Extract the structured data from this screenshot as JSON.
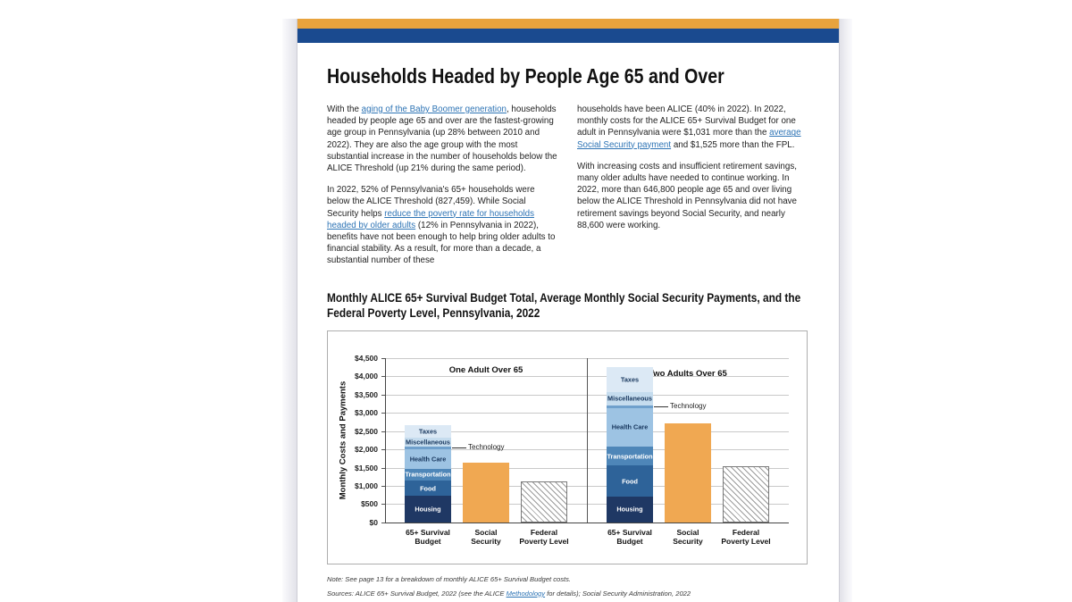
{
  "brand": {
    "band_orange": "#E8A33D",
    "band_blue": "#1A4A8F",
    "link_color": "#2E74B5"
  },
  "title": "Households Headed by People Age 65 and Over",
  "article": {
    "col1": {
      "p1": [
        {
          "t": "With the "
        },
        {
          "t": "aging of the Baby Boomer generation",
          "link": true
        },
        {
          "t": ", households headed by people age 65 and over are the fastest-growing age group in Pennsylvania (up 28% between 2010 and 2022). They are also the age group with the most substantial increase in the number of households below the ALICE Threshold (up 21% during the same period)."
        }
      ],
      "p2": [
        {
          "t": "In 2022, 52% of Pennsylvania's 65+ households were below the ALICE Threshold (827,459). While Social Security helps "
        },
        {
          "t": "reduce the poverty rate for households headed by older adults",
          "link": true
        },
        {
          "t": " (12% in Pennsylvania in 2022), benefits have not been enough to help bring older adults to financial stability. As a result, for more than a decade, a substantial number of these"
        }
      ]
    },
    "col2": {
      "p1": [
        {
          "t": "households have been ALICE (40% in 2022). In 2022, monthly costs for the ALICE 65+ Survival Budget for one adult in Pennsylvania were $1,031 more than the "
        },
        {
          "t": "average Social Security payment",
          "link": true
        },
        {
          "t": " and $1,525 more than the FPL."
        }
      ],
      "p2": [
        {
          "t": "With increasing costs and insufficient retirement savings, many older adults have needed to continue working. In 2022, more than 646,800 people age 65 and over living below the ALICE Threshold in Pennsylvania did not have retirement savings beyond Social Security, and nearly 88,600 were working."
        }
      ]
    }
  },
  "chart_heading": "Monthly ALICE 65+ Survival Budget Total, Average Monthly Social Security Payments, and the Federal Poverty Level, Pennsylvania, 2022",
  "chart_data": {
    "type": "bar",
    "title": "Monthly ALICE 65+ Survival Budget Total, Average Monthly Social Security Payments, and the Federal Poverty Level, Pennsylvania, 2022",
    "ylabel": "Monthly Costs and Payments",
    "ylim": [
      0,
      4500
    ],
    "ytick_step": 500,
    "ytick_labels": [
      "$0",
      "$500",
      "$1,000",
      "$1,500",
      "$2,000",
      "$2,500",
      "$3,000",
      "$3,500",
      "$4,000",
      "$4,500"
    ],
    "grid": true,
    "values_are_estimates_from_pixels": true,
    "segment_colors": {
      "Housing": {
        "fill": "#1F3864",
        "text": "#FFFFFF"
      },
      "Food": {
        "fill": "#2E6399",
        "text": "#FFFFFF"
      },
      "Transportation": {
        "fill": "#4E86B8",
        "text": "#FFFFFF"
      },
      "Health Care": {
        "fill": "#9DC3E3",
        "text": "#17365D"
      },
      "Technology": {
        "fill": "#6FA0CC",
        "text": "#222222"
      },
      "Miscellaneous": {
        "fill": "#C5DCEE",
        "text": "#17365D"
      },
      "Taxes": {
        "fill": "#DCE9F5",
        "text": "#17365D"
      }
    },
    "social_security_color": "#F0A852",
    "panels": [
      {
        "header": "One Adult Over 65",
        "bars": [
          {
            "label": [
              "65+ Survival",
              "Budget"
            ],
            "kind": "stacked",
            "total": 2658,
            "segments": [
              {
                "name": "Housing",
                "value": 720
              },
              {
                "name": "Food",
                "value": 430
              },
              {
                "name": "Transportation",
                "value": 325
              },
              {
                "name": "Health Care",
                "value": 525
              },
              {
                "name": "Technology",
                "value": 85,
                "callout": true
              },
              {
                "name": "Miscellaneous",
                "value": 230
              },
              {
                "name": "Taxes",
                "value": 343
              }
            ]
          },
          {
            "label": [
              "Social",
              "Security"
            ],
            "kind": "solid",
            "value": 1627
          },
          {
            "label": [
              "Federal",
              "Poverty Level"
            ],
            "kind": "hatched",
            "value": 1133
          }
        ]
      },
      {
        "header": "Two Adults Over 65",
        "bars": [
          {
            "label": [
              "65+ Survival",
              "Budget"
            ],
            "kind": "stacked",
            "total": 4250,
            "segments": [
              {
                "name": "Housing",
                "value": 710
              },
              {
                "name": "Food",
                "value": 840
              },
              {
                "name": "Transportation",
                "value": 530
              },
              {
                "name": "Health Care",
                "value": 1045
              },
              {
                "name": "Technology",
                "value": 85,
                "callout": true
              },
              {
                "name": "Miscellaneous",
                "value": 360
              },
              {
                "name": "Taxes",
                "value": 680
              }
            ]
          },
          {
            "label": [
              "Social",
              "Security"
            ],
            "kind": "solid",
            "value": 2700
          },
          {
            "label": [
              "Federal",
              "Poverty Level"
            ],
            "kind": "hatched",
            "value": 1526
          }
        ]
      }
    ],
    "callout_label": "Technology"
  },
  "note": [
    {
      "t": "Note: See page 13 for a breakdown of monthly ALICE 65+ Survival Budget costs."
    }
  ],
  "sources": [
    {
      "t": "Sources: ALICE 65+ Survival Budget, 2022 (see the ALICE "
    },
    {
      "t": "Methodology",
      "link": true
    },
    {
      "t": " for details); Social Security Administration, 2022"
    }
  ]
}
